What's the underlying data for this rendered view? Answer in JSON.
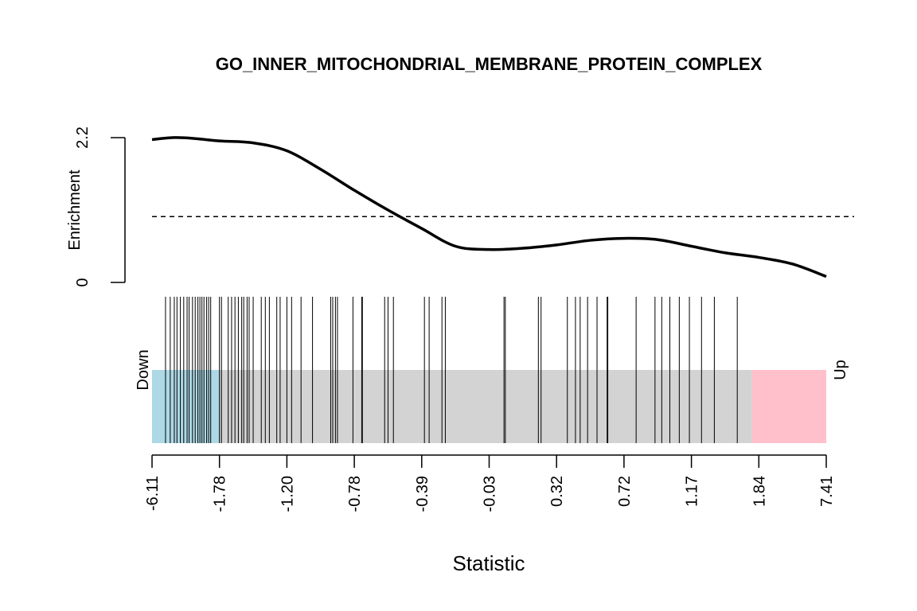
{
  "chart_data": {
    "type": "line",
    "title": "GO_INNER_MITOCHONDRIAL_MEMBRANE_PROTEIN_COMPLEX",
    "xlabel": "Statistic",
    "ylabel": "Enrichment",
    "y_ticks": [
      "0",
      "2.2"
    ],
    "ylim": [
      0,
      2.2
    ],
    "x_tick_labels": [
      "-6.11",
      "-1.78",
      "-1.20",
      "-0.78",
      "-0.39",
      "-0.03",
      "0.32",
      "0.72",
      "1.17",
      "1.84",
      "7.41"
    ],
    "x_tick_positions": [
      0,
      0.1,
      0.2,
      0.3,
      0.4,
      0.5,
      0.6,
      0.7,
      0.8,
      0.9,
      1.0
    ],
    "reference_line": {
      "y": 1.0,
      "style": "dashed"
    },
    "enrichment_curve": {
      "x": [
        0.0,
        0.03,
        0.06,
        0.1,
        0.15,
        0.2,
        0.25,
        0.3,
        0.35,
        0.4,
        0.45,
        0.5,
        0.55,
        0.6,
        0.65,
        0.7,
        0.75,
        0.8,
        0.85,
        0.9,
        0.95,
        1.0
      ],
      "y": [
        2.17,
        2.2,
        2.19,
        2.15,
        2.12,
        2.0,
        1.72,
        1.4,
        1.1,
        0.82,
        0.55,
        0.5,
        0.52,
        0.57,
        0.64,
        0.67,
        0.65,
        0.55,
        0.45,
        0.38,
        0.28,
        0.09
      ]
    },
    "barcode_positions": [
      0.02,
      0.027,
      0.033,
      0.037,
      0.042,
      0.047,
      0.052,
      0.055,
      0.06,
      0.064,
      0.068,
      0.071,
      0.074,
      0.077,
      0.081,
      0.084,
      0.087,
      0.1,
      0.103,
      0.113,
      0.118,
      0.123,
      0.128,
      0.133,
      0.136,
      0.141,
      0.144,
      0.15,
      0.162,
      0.168,
      0.174,
      0.185,
      0.19,
      0.2,
      0.207,
      0.221,
      0.238,
      0.265,
      0.268,
      0.272,
      0.275,
      0.298,
      0.311,
      0.312,
      0.345,
      0.35,
      0.358,
      0.404,
      0.411,
      0.43,
      0.435,
      0.522,
      0.524,
      0.573,
      0.577,
      0.616,
      0.628,
      0.635,
      0.646,
      0.66,
      0.675,
      0.676,
      0.718,
      0.746,
      0.756,
      0.768,
      0.782,
      0.797,
      0.815,
      0.834,
      0.868
    ],
    "bar_segments": [
      {
        "from": 0.0,
        "to": 0.1,
        "color": "#add8e6"
      },
      {
        "from": 0.1,
        "to": 0.89,
        "color": "#d3d3d3"
      },
      {
        "from": 0.89,
        "to": 1.0,
        "color": "#ffc0cb"
      }
    ],
    "bar_labels": {
      "left": "Down",
      "right": "Up"
    },
    "grid": false
  }
}
